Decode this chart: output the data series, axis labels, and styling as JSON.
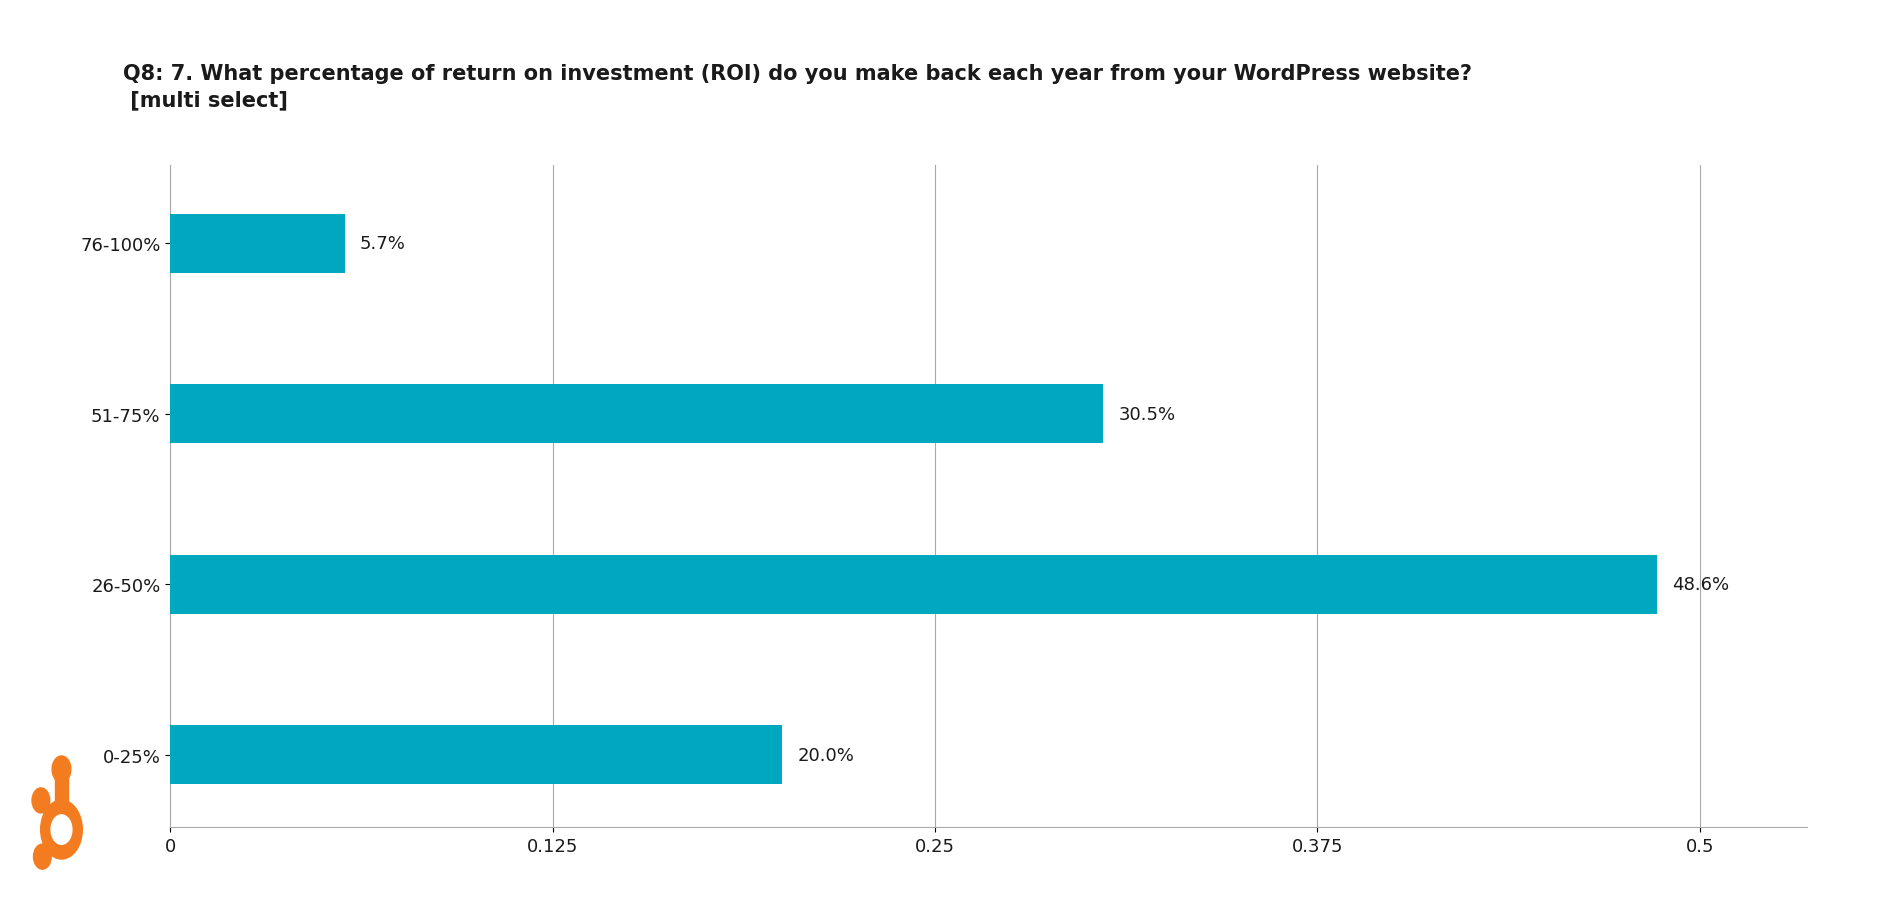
{
  "title_line1": "Q8: 7. What percentage of return on investment (ROI) do you make back each year from your WordPress website?",
  "title_line2": " [multi select]",
  "categories": [
    "0-25%",
    "26-50%",
    "51-75%",
    "76-100%"
  ],
  "values": [
    0.2,
    0.486,
    0.305,
    0.057
  ],
  "labels": [
    "20.0%",
    "48.6%",
    "30.5%",
    "5.7%"
  ],
  "bar_color": "#00a8bf",
  "background_color": "#ffffff",
  "xlim": [
    0,
    0.535
  ],
  "xticks": [
    0,
    0.125,
    0.25,
    0.375,
    0.5
  ],
  "xtick_labels": [
    "0",
    "0.125",
    "0.25",
    "0.375",
    "0.5"
  ],
  "title_fontsize": 15,
  "tick_fontsize": 13,
  "bar_label_fontsize": 13,
  "grid_color": "#aaaaaa",
  "spine_color": "#aaaaaa",
  "title_color": "#1a1a1a",
  "tick_label_color": "#1a1a1a",
  "logo_orange": "#f47c20",
  "bar_height": 0.45
}
